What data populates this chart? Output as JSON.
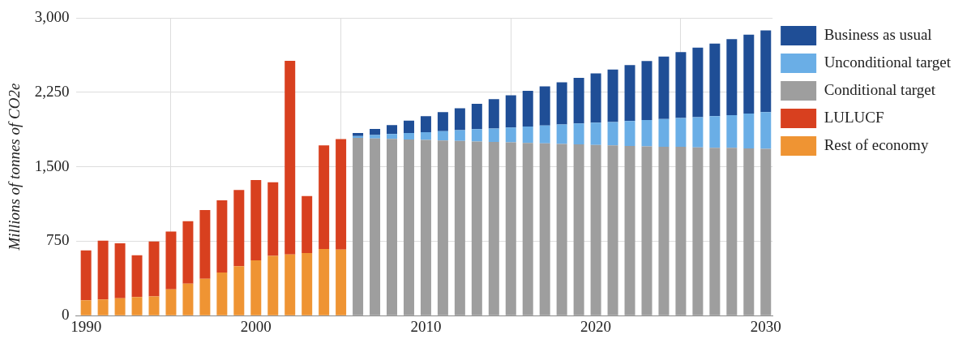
{
  "chart_data": {
    "type": "bar",
    "stacked": true,
    "ylabel": "Millions of tonnes of CO2e",
    "x": [
      1990,
      1991,
      1992,
      1993,
      1994,
      1995,
      1996,
      1997,
      1998,
      1999,
      2000,
      2001,
      2002,
      2003,
      2004,
      2005,
      2006,
      2007,
      2008,
      2009,
      2010,
      2011,
      2012,
      2013,
      2014,
      2015,
      2016,
      2017,
      2018,
      2019,
      2020,
      2021,
      2022,
      2023,
      2024,
      2025,
      2026,
      2027,
      2028,
      2029,
      2030
    ],
    "xlim": [
      1989.4,
      2030.4
    ],
    "xticks": [
      1990,
      2000,
      2010,
      2020,
      2030
    ],
    "ylim": [
      0,
      3000
    ],
    "yticks": [
      0,
      {
        "value": 750,
        "label": "750"
      },
      {
        "value": 1500,
        "label": "1,500"
      },
      {
        "value": 2250,
        "label": "2,250"
      },
      {
        "value": 3000,
        "label": "3,000"
      }
    ],
    "grid": true,
    "legend": "right",
    "series": [
      {
        "name": "Rest of economy",
        "color": "#ef9433",
        "values": [
          154,
          162,
          176,
          188,
          193,
          266,
          322,
          372,
          434,
          498,
          557,
          602,
          616,
          630,
          672,
          666,
          null,
          null,
          null,
          null,
          null,
          null,
          null,
          null,
          null,
          null,
          null,
          null,
          null,
          null,
          null,
          null,
          null,
          null,
          null,
          null,
          null,
          null,
          null,
          null,
          null
        ]
      },
      {
        "name": "LULUCF",
        "color": "#d8401f",
        "values": [
          504,
          594,
          552,
          420,
          555,
          582,
          630,
          692,
          728,
          768,
          809,
          742,
          1952,
          574,
          1044,
          1112,
          null,
          null,
          null,
          null,
          null,
          null,
          null,
          null,
          null,
          null,
          null,
          null,
          null,
          null,
          null,
          null,
          null,
          null,
          null,
          null,
          null,
          null,
          null,
          null,
          null
        ]
      },
      {
        "name": "Conditional target",
        "color": "#9e9e9e",
        "values": [
          null,
          null,
          null,
          null,
          null,
          null,
          null,
          null,
          null,
          null,
          null,
          null,
          null,
          null,
          null,
          null,
          1790,
          1785,
          1780,
          1775,
          1770,
          1765,
          1760,
          1755,
          1750,
          1745,
          1740,
          1735,
          1730,
          1725,
          1720,
          1715,
          1710,
          1705,
          1700,
          1700,
          1695,
          1690,
          1690,
          1685,
          1680
        ]
      },
      {
        "name": "Unconditional target",
        "color": "#6aaee6",
        "values": [
          null,
          null,
          null,
          null,
          null,
          null,
          null,
          null,
          null,
          null,
          null,
          null,
          null,
          null,
          null,
          null,
          20,
          35,
          50,
          65,
          78,
          93,
          108,
          123,
          135,
          150,
          165,
          180,
          195,
          210,
          225,
          235,
          250,
          265,
          280,
          290,
          305,
          320,
          330,
          350,
          370
        ]
      },
      {
        "name": "Business as usual",
        "color": "#1f4e96",
        "values": [
          null,
          null,
          null,
          null,
          null,
          null,
          null,
          null,
          null,
          null,
          null,
          null,
          null,
          null,
          null,
          null,
          30,
          60,
          90,
          125,
          162,
          192,
          222,
          257,
          295,
          325,
          360,
          395,
          425,
          460,
          495,
          530,
          565,
          595,
          630,
          665,
          700,
          730,
          765,
          795,
          823
        ]
      }
    ]
  }
}
